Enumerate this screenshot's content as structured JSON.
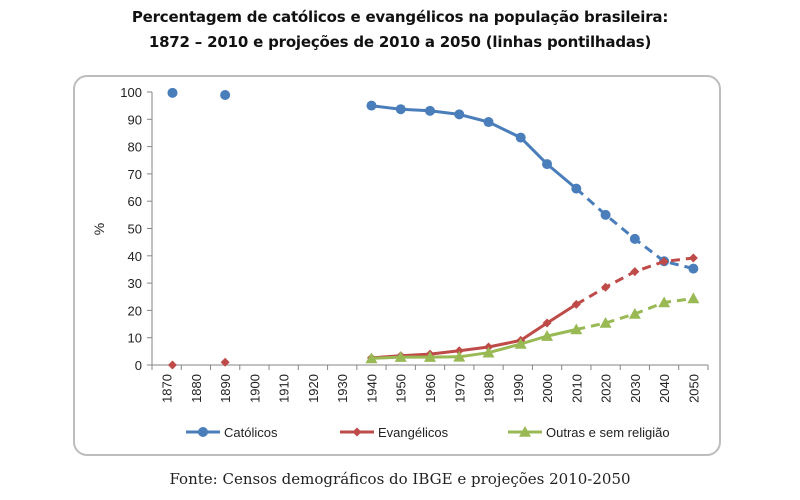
{
  "chart_data": {
    "type": "line",
    "title": "Percentagem de católicos e evangélicos na população brasileira:",
    "subtitle": "1872 – 2010 e projeções de 2010 a 2050 (linhas pontilhadas)",
    "xlabel": "",
    "ylabel": "%",
    "xlim": [
      1865,
      2055
    ],
    "ylim": [
      0,
      100
    ],
    "yticks": [
      "0",
      "10",
      "20",
      "30",
      "40",
      "50",
      "60",
      "70",
      "80",
      "90",
      "100"
    ],
    "xticks": [
      "1870",
      "1880",
      "1890",
      "1900",
      "1910",
      "1920",
      "1930",
      "1940",
      "1950",
      "1960",
      "1970",
      "1980",
      "1990",
      "2000",
      "2010",
      "2020",
      "2030",
      "2040",
      "2050"
    ],
    "grid": false,
    "legend_position": "bottom",
    "projection_start": 2010,
    "series": [
      {
        "name": "Católicos",
        "color": "#4a7ebb",
        "marker": "circle",
        "isolated_points": [
          [
            1872,
            99.7
          ],
          [
            1890,
            98.9
          ]
        ],
        "points": [
          [
            1940,
            95.0
          ],
          [
            1950,
            93.7
          ],
          [
            1960,
            93.1
          ],
          [
            1970,
            91.8
          ],
          [
            1980,
            89.0
          ],
          [
            1991,
            83.3
          ],
          [
            2000,
            73.6
          ],
          [
            2010,
            64.6
          ],
          [
            2020,
            55.0
          ],
          [
            2030,
            46.2
          ],
          [
            2040,
            38.0
          ],
          [
            2050,
            35.3
          ]
        ]
      },
      {
        "name": "Evangélicos",
        "color": "#be4b48",
        "marker": "diamond",
        "isolated_points": [
          [
            1872,
            0.0
          ],
          [
            1890,
            1.0
          ]
        ],
        "points": [
          [
            1940,
            2.6
          ],
          [
            1950,
            3.4
          ],
          [
            1960,
            4.0
          ],
          [
            1970,
            5.2
          ],
          [
            1980,
            6.6
          ],
          [
            1991,
            9.0
          ],
          [
            2000,
            15.4
          ],
          [
            2010,
            22.2
          ],
          [
            2020,
            28.5
          ],
          [
            2030,
            34.2
          ],
          [
            2040,
            37.9
          ],
          [
            2050,
            39.2
          ]
        ]
      },
      {
        "name": "Outras e sem religião",
        "color": "#98b954",
        "marker": "triangle",
        "isolated_points": [],
        "points": [
          [
            1940,
            2.4
          ],
          [
            1950,
            2.9
          ],
          [
            1960,
            2.9
          ],
          [
            1970,
            3.0
          ],
          [
            1980,
            4.5
          ],
          [
            1991,
            7.7
          ],
          [
            2000,
            10.6
          ],
          [
            2010,
            13.0
          ],
          [
            2020,
            15.4
          ],
          [
            2030,
            18.7
          ],
          [
            2040,
            22.9
          ],
          [
            2050,
            24.4
          ]
        ]
      }
    ],
    "source": "Fonte: Censos demográficos do IBGE e projeções 2010-2050"
  }
}
